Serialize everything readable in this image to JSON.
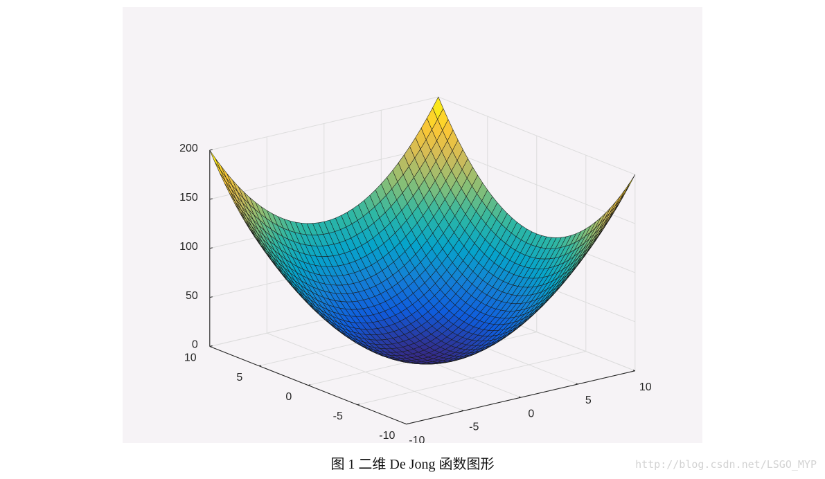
{
  "caption": "图 1  二维 De Jong 函数图形",
  "watermark": "http://blog.csdn.net/LSGO_MYP",
  "colors": {
    "background": "#f6f3f6",
    "grid": "#dcdcdc",
    "axis": "#262626",
    "mesh_edge": "#1a1a1a",
    "colormap": [
      "#352a87",
      "#0f5cdd",
      "#1481d6",
      "#06a4ca",
      "#2eb7a4",
      "#87bf77",
      "#d1bb59",
      "#fec832",
      "#f9fb0e"
    ]
  },
  "chart_data": {
    "type": "surface",
    "title": "",
    "function": "z = x^2 + y^2",
    "x": [
      -10,
      -9,
      -8,
      -7,
      -6,
      -5,
      -4,
      -3,
      -2,
      -1,
      0,
      1,
      2,
      3,
      4,
      5,
      6,
      7,
      8,
      9,
      10
    ],
    "y": [
      -10,
      -9,
      -8,
      -7,
      -6,
      -5,
      -4,
      -3,
      -2,
      -1,
      0,
      1,
      2,
      3,
      4,
      5,
      6,
      7,
      8,
      9,
      10
    ],
    "xlim": [
      -10,
      10
    ],
    "ylim": [
      -10,
      10
    ],
    "zlim": [
      0,
      200
    ],
    "x_ticks": [
      "-10",
      "-5",
      "0",
      "5",
      "10"
    ],
    "y_ticks": [
      "-10",
      "-5",
      "0",
      "5",
      "10"
    ],
    "z_ticks": [
      "0",
      "50",
      "100",
      "150",
      "200"
    ],
    "grid": true,
    "legend": "none",
    "view": "default 3-D (azimuth -37.5, elevation 30)"
  }
}
